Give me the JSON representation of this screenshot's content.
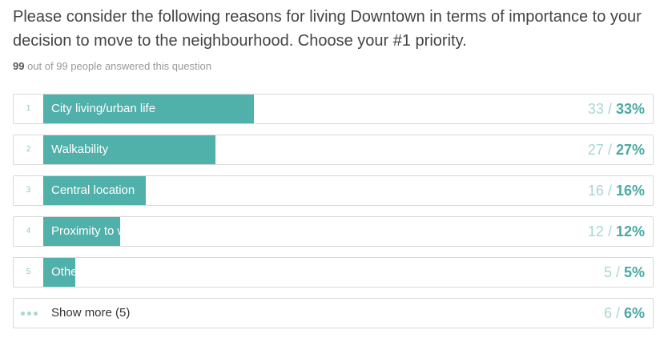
{
  "question": "Please consider the following reasons for living Downtown in terms of importance to your decision to move to the neighbourhood. Choose your #1 priority.",
  "answered": {
    "count": "99",
    "suffix": "out of 99 people answered this question"
  },
  "colors": {
    "bar": "#50b0aa",
    "count_text": "#a8d6d3",
    "percent_text": "#4aa8a2",
    "rank_text": "#8fc9c6"
  },
  "results": [
    {
      "rank": "1",
      "label": "City living/urban life",
      "count": "33",
      "percent": "33%",
      "fraction": 0.33
    },
    {
      "rank": "2",
      "label": "Walkability",
      "count": "27",
      "percent": "27%",
      "fraction": 0.27
    },
    {
      "rank": "3",
      "label": "Central location",
      "count": "16",
      "percent": "16%",
      "fraction": 0.16
    },
    {
      "rank": "4",
      "label": "Proximity to work",
      "count": "12",
      "percent": "12%",
      "fraction": 0.12
    },
    {
      "rank": "5",
      "label": "Other",
      "count": "5",
      "percent": "5%",
      "fraction": 0.05
    }
  ],
  "show_more": {
    "icon": "ellipsis-icon",
    "label": "Show more (5)",
    "count": "6",
    "percent": "6%"
  }
}
